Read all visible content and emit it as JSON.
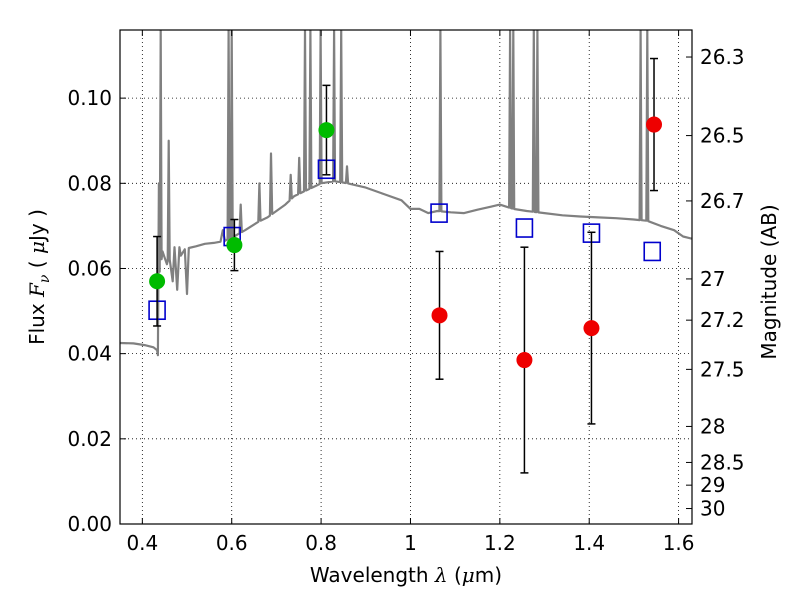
{
  "chart_data": {
    "type": "scatter",
    "xlabel": {
      "pre": "Wavelength  ",
      "lambda": "λ",
      "open": " (",
      "mu": "μ",
      "unit": "m)"
    },
    "ylabel": {
      "pre": "Flux  ",
      "F": "F",
      "nu": "ν",
      "mid": "  ( ",
      "mu": "μ",
      "unit": "Jy )"
    },
    "ylabel_right": "Magnitude (AB)",
    "xlim": [
      0.35,
      1.63
    ],
    "ylim": [
      0.0,
      0.116
    ],
    "x_ticks": [
      {
        "value": 0.4,
        "label": "0.4"
      },
      {
        "value": 0.6,
        "label": "0.6"
      },
      {
        "value": 0.8,
        "label": "0.8"
      },
      {
        "value": 1.0,
        "label": "1"
      },
      {
        "value": 1.2,
        "label": "1.2"
      },
      {
        "value": 1.4,
        "label": "1.4"
      },
      {
        "value": 1.6,
        "label": "1.6"
      }
    ],
    "y_ticks": [
      {
        "value": 0.0,
        "label": "0.00"
      },
      {
        "value": 0.02,
        "label": "0.02"
      },
      {
        "value": 0.04,
        "label": "0.04"
      },
      {
        "value": 0.06,
        "label": "0.06"
      },
      {
        "value": 0.08,
        "label": "0.08"
      },
      {
        "value": 0.1,
        "label": "0.10"
      }
    ],
    "right_ticks": [
      {
        "mag": 26.3,
        "label": "26.3"
      },
      {
        "mag": 26.5,
        "label": "26.5"
      },
      {
        "mag": 26.7,
        "label": "26.7"
      },
      {
        "mag": 27.0,
        "label": "27"
      },
      {
        "mag": 27.2,
        "label": "27.2"
      },
      {
        "mag": 27.5,
        "label": "27.5"
      },
      {
        "mag": 28.0,
        "label": "28"
      },
      {
        "mag": 28.5,
        "label": "28.5"
      },
      {
        "mag": 29.0,
        "label": "29"
      },
      {
        "mag": 30.0,
        "label": "30"
      }
    ],
    "grid": true,
    "colors": {
      "spectrum": "#808080",
      "green": "#00bb00",
      "red": "#ee0000",
      "model": "#0000cc",
      "errorbar": "#000000"
    },
    "spectrum": [
      [
        0.35,
        0.0425
      ],
      [
        0.38,
        0.0424
      ],
      [
        0.405,
        0.042
      ],
      [
        0.425,
        0.0415
      ],
      [
        0.433,
        0.0408
      ],
      [
        0.435,
        0.0395
      ],
      [
        0.437,
        0.04
      ],
      [
        0.44,
        0.06
      ],
      [
        0.443,
        0.062
      ],
      [
        0.445,
        0.064
      ],
      [
        0.455,
        0.061
      ],
      [
        0.46,
        0.063
      ],
      [
        0.468,
        0.057
      ],
      [
        0.472,
        0.065
      ],
      [
        0.478,
        0.055
      ],
      [
        0.483,
        0.065
      ],
      [
        0.486,
        0.063
      ],
      [
        0.495,
        0.0645
      ],
      [
        0.5,
        0.054
      ],
      [
        0.504,
        0.0648
      ],
      [
        0.52,
        0.0652
      ],
      [
        0.54,
        0.0658
      ],
      [
        0.56,
        0.066
      ],
      [
        0.575,
        0.0663
      ],
      [
        0.58,
        0.069
      ],
      [
        0.585,
        0.0665
      ],
      [
        0.59,
        0.0668
      ],
      [
        0.605,
        0.0675
      ],
      [
        0.63,
        0.069
      ],
      [
        0.66,
        0.071
      ],
      [
        0.68,
        0.072
      ],
      [
        0.7,
        0.0735
      ],
      [
        0.72,
        0.075
      ],
      [
        0.74,
        0.077
      ],
      [
        0.75,
        0.0775
      ],
      [
        0.77,
        0.0785
      ],
      [
        0.8,
        0.08
      ],
      [
        0.83,
        0.0805
      ],
      [
        0.86,
        0.08
      ],
      [
        0.9,
        0.079
      ],
      [
        0.94,
        0.0775
      ],
      [
        0.98,
        0.076
      ],
      [
        1.0,
        0.074
      ],
      [
        1.02,
        0.074
      ],
      [
        1.04,
        0.073
      ],
      [
        1.06,
        0.0735
      ],
      [
        1.09,
        0.0732
      ],
      [
        1.12,
        0.073
      ],
      [
        1.15,
        0.0738
      ],
      [
        1.18,
        0.0745
      ],
      [
        1.2,
        0.075
      ],
      [
        1.23,
        0.074
      ],
      [
        1.26,
        0.0735
      ],
      [
        1.3,
        0.073
      ],
      [
        1.34,
        0.0725
      ],
      [
        1.38,
        0.0722
      ],
      [
        1.42,
        0.072
      ],
      [
        1.46,
        0.0718
      ],
      [
        1.5,
        0.0715
      ],
      [
        1.53,
        0.0712
      ],
      [
        1.56,
        0.07
      ],
      [
        1.59,
        0.069
      ],
      [
        1.61,
        0.0675
      ],
      [
        1.63,
        0.067
      ]
    ],
    "emission_lines": [
      {
        "x": 0.437,
        "y": 0.08
      },
      {
        "x": 0.441,
        "y": 0.116
      },
      {
        "x": 0.459,
        "y": 0.09
      },
      {
        "x": 0.593,
        "y": 0.116
      },
      {
        "x": 0.6,
        "y": 0.116
      },
      {
        "x": 0.764,
        "y": 0.116
      },
      {
        "x": 0.776,
        "y": 0.116
      },
      {
        "x": 0.799,
        "y": 0.116
      },
      {
        "x": 0.829,
        "y": 0.116
      },
      {
        "x": 0.845,
        "y": 0.116
      },
      {
        "x": 1.067,
        "y": 0.116
      },
      {
        "x": 1.223,
        "y": 0.116
      },
      {
        "x": 1.23,
        "y": 0.116
      },
      {
        "x": 1.276,
        "y": 0.116
      },
      {
        "x": 1.284,
        "y": 0.116
      },
      {
        "x": 1.515,
        "y": 0.116
      },
      {
        "x": 1.53,
        "y": 0.116
      }
    ],
    "small_features": [
      {
        "x": 0.62,
        "y": 0.075
      },
      {
        "x": 0.662,
        "y": 0.08
      },
      {
        "x": 0.688,
        "y": 0.087
      },
      {
        "x": 0.732,
        "y": 0.082
      },
      {
        "x": 0.751,
        "y": 0.086
      },
      {
        "x": 0.858,
        "y": 0.084
      }
    ],
    "points_green": [
      {
        "x": 0.433,
        "y": 0.057,
        "yerr": 0.0105
      },
      {
        "x": 0.606,
        "y": 0.0655,
        "yerr": 0.006
      },
      {
        "x": 0.812,
        "y": 0.0925,
        "yerr": 0.0105
      }
    ],
    "points_red": [
      {
        "x": 1.065,
        "y": 0.049,
        "yerr": 0.015
      },
      {
        "x": 1.255,
        "y": 0.0385,
        "yerr": 0.0265
      },
      {
        "x": 1.405,
        "y": 0.046,
        "yerr": 0.0225
      },
      {
        "x": 1.545,
        "y": 0.0938,
        "yerr": 0.0155
      }
    ],
    "model_points": [
      {
        "x": 0.433,
        "y": 0.0502
      },
      {
        "x": 0.601,
        "y": 0.0675
      },
      {
        "x": 0.812,
        "y": 0.0833
      },
      {
        "x": 1.064,
        "y": 0.073
      },
      {
        "x": 1.255,
        "y": 0.0695
      },
      {
        "x": 1.405,
        "y": 0.0683
      },
      {
        "x": 1.541,
        "y": 0.064
      }
    ]
  }
}
